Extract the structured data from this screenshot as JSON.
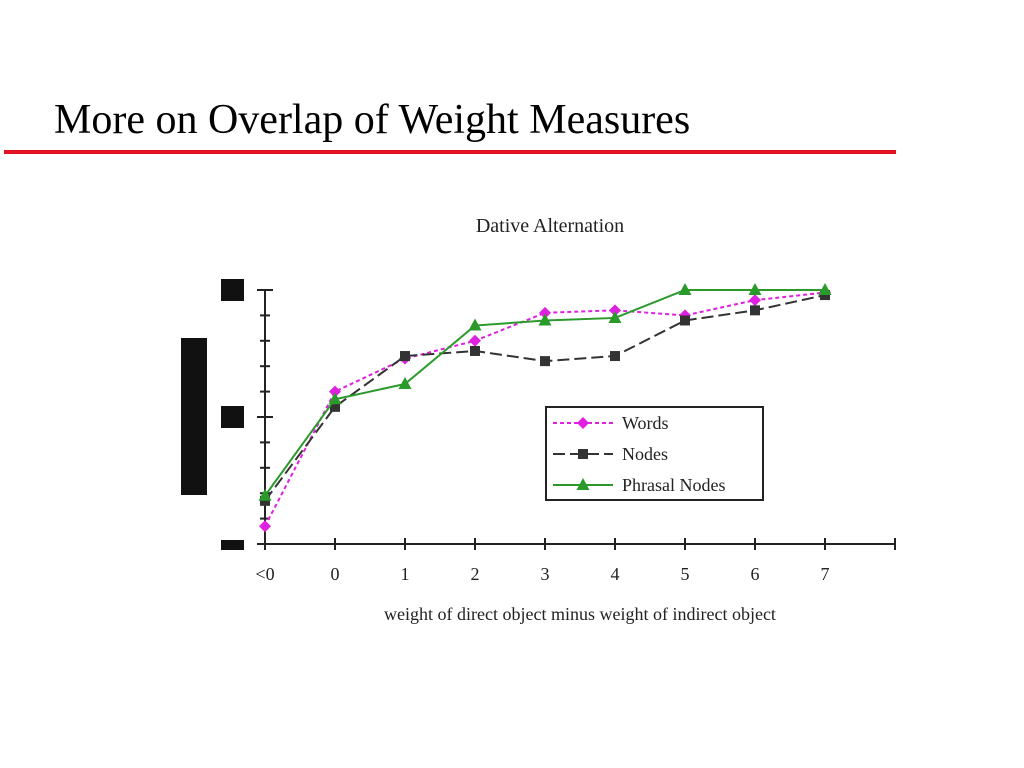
{
  "slide": {
    "title": "More on Overlap of Weight Measures",
    "accent_color": "#e0141e"
  },
  "chart_data": {
    "type": "line",
    "title": "Dative Alternation",
    "xlabel": "weight of direct object minus weight of indirect object",
    "ylabel": "",
    "categories": [
      "<0",
      "0",
      "1",
      "2",
      "3",
      "4",
      "5",
      "6",
      "7"
    ],
    "ylim": [
      0,
      1
    ],
    "y_tick_labels_visible": false,
    "grid": false,
    "legend_position": "center-right",
    "series": [
      {
        "name": "Words",
        "style": "dotted",
        "marker": "diamond",
        "color": "#e020e0",
        "values": [
          0.07,
          0.6,
          0.73,
          0.8,
          0.91,
          0.92,
          0.9,
          0.96,
          0.99
        ]
      },
      {
        "name": "Nodes",
        "style": "dashed",
        "marker": "square",
        "color": "#333333",
        "values": [
          0.17,
          0.54,
          0.74,
          0.76,
          0.72,
          0.74,
          0.88,
          0.92,
          0.98
        ]
      },
      {
        "name": "Phrasal Nodes",
        "style": "solid",
        "marker": "triangle",
        "color": "#2a9a2a",
        "values": [
          0.19,
          0.57,
          0.63,
          0.86,
          0.88,
          0.89,
          1.0,
          1.0,
          1.0
        ]
      }
    ]
  }
}
